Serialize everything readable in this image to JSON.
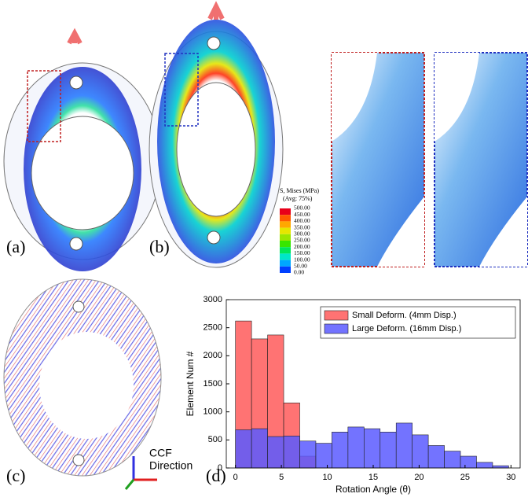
{
  "panels": {
    "labels": [
      "(a)",
      "(b)",
      "(c)",
      "(d)"
    ]
  },
  "colorbar": {
    "title": "S, Mises (MPa)",
    "subtitle": "(Avg: 75%)",
    "levels": [
      "500.00",
      "450.00",
      "400.00",
      "350.00",
      "300.00",
      "250.00",
      "200.00",
      "150.00",
      "100.00",
      "50.00",
      "0.00"
    ],
    "colors": [
      "#e8001a",
      "#ff5a00",
      "#ffa800",
      "#e6e600",
      "#9be600",
      "#38e600",
      "#00e65a",
      "#00e6c8",
      "#00a8ff",
      "#0040ff"
    ]
  },
  "axes_triad": {
    "label1": "CCF",
    "label2": "Direction"
  },
  "chart_data": {
    "type": "histogram",
    "xlabel": "Rotation Angle (θ)",
    "ylabel": "Element Num #",
    "bins": [
      0,
      1.75,
      3.5,
      5.25,
      7,
      8.75,
      10.5,
      12.25,
      14,
      15.75,
      17.5,
      19.25,
      21,
      22.75,
      24.5,
      26.25,
      28,
      29.75
    ],
    "series": [
      {
        "name": "Small Deform. (4mm Disp.)",
        "color": "#ff5a5a",
        "values": [
          2620,
          2300,
          2370,
          1160,
          210,
          0,
          0,
          0,
          0,
          0,
          0,
          0,
          0,
          0,
          0,
          0,
          0
        ]
      },
      {
        "name": "Large Deform. (16mm Disp.)",
        "color": "#5a5aff",
        "values": [
          680,
          700,
          560,
          570,
          480,
          440,
          640,
          730,
          700,
          640,
          800,
          590,
          400,
          300,
          210,
          100,
          40
        ]
      }
    ],
    "xlim": [
      -1,
      31
    ],
    "ylim": [
      0,
      3000
    ],
    "xticks": [
      0,
      5,
      10,
      15,
      20,
      25,
      30
    ],
    "yticks": [
      0,
      500,
      1000,
      1500,
      2000,
      2500,
      3000
    ],
    "legend": "upper right"
  }
}
